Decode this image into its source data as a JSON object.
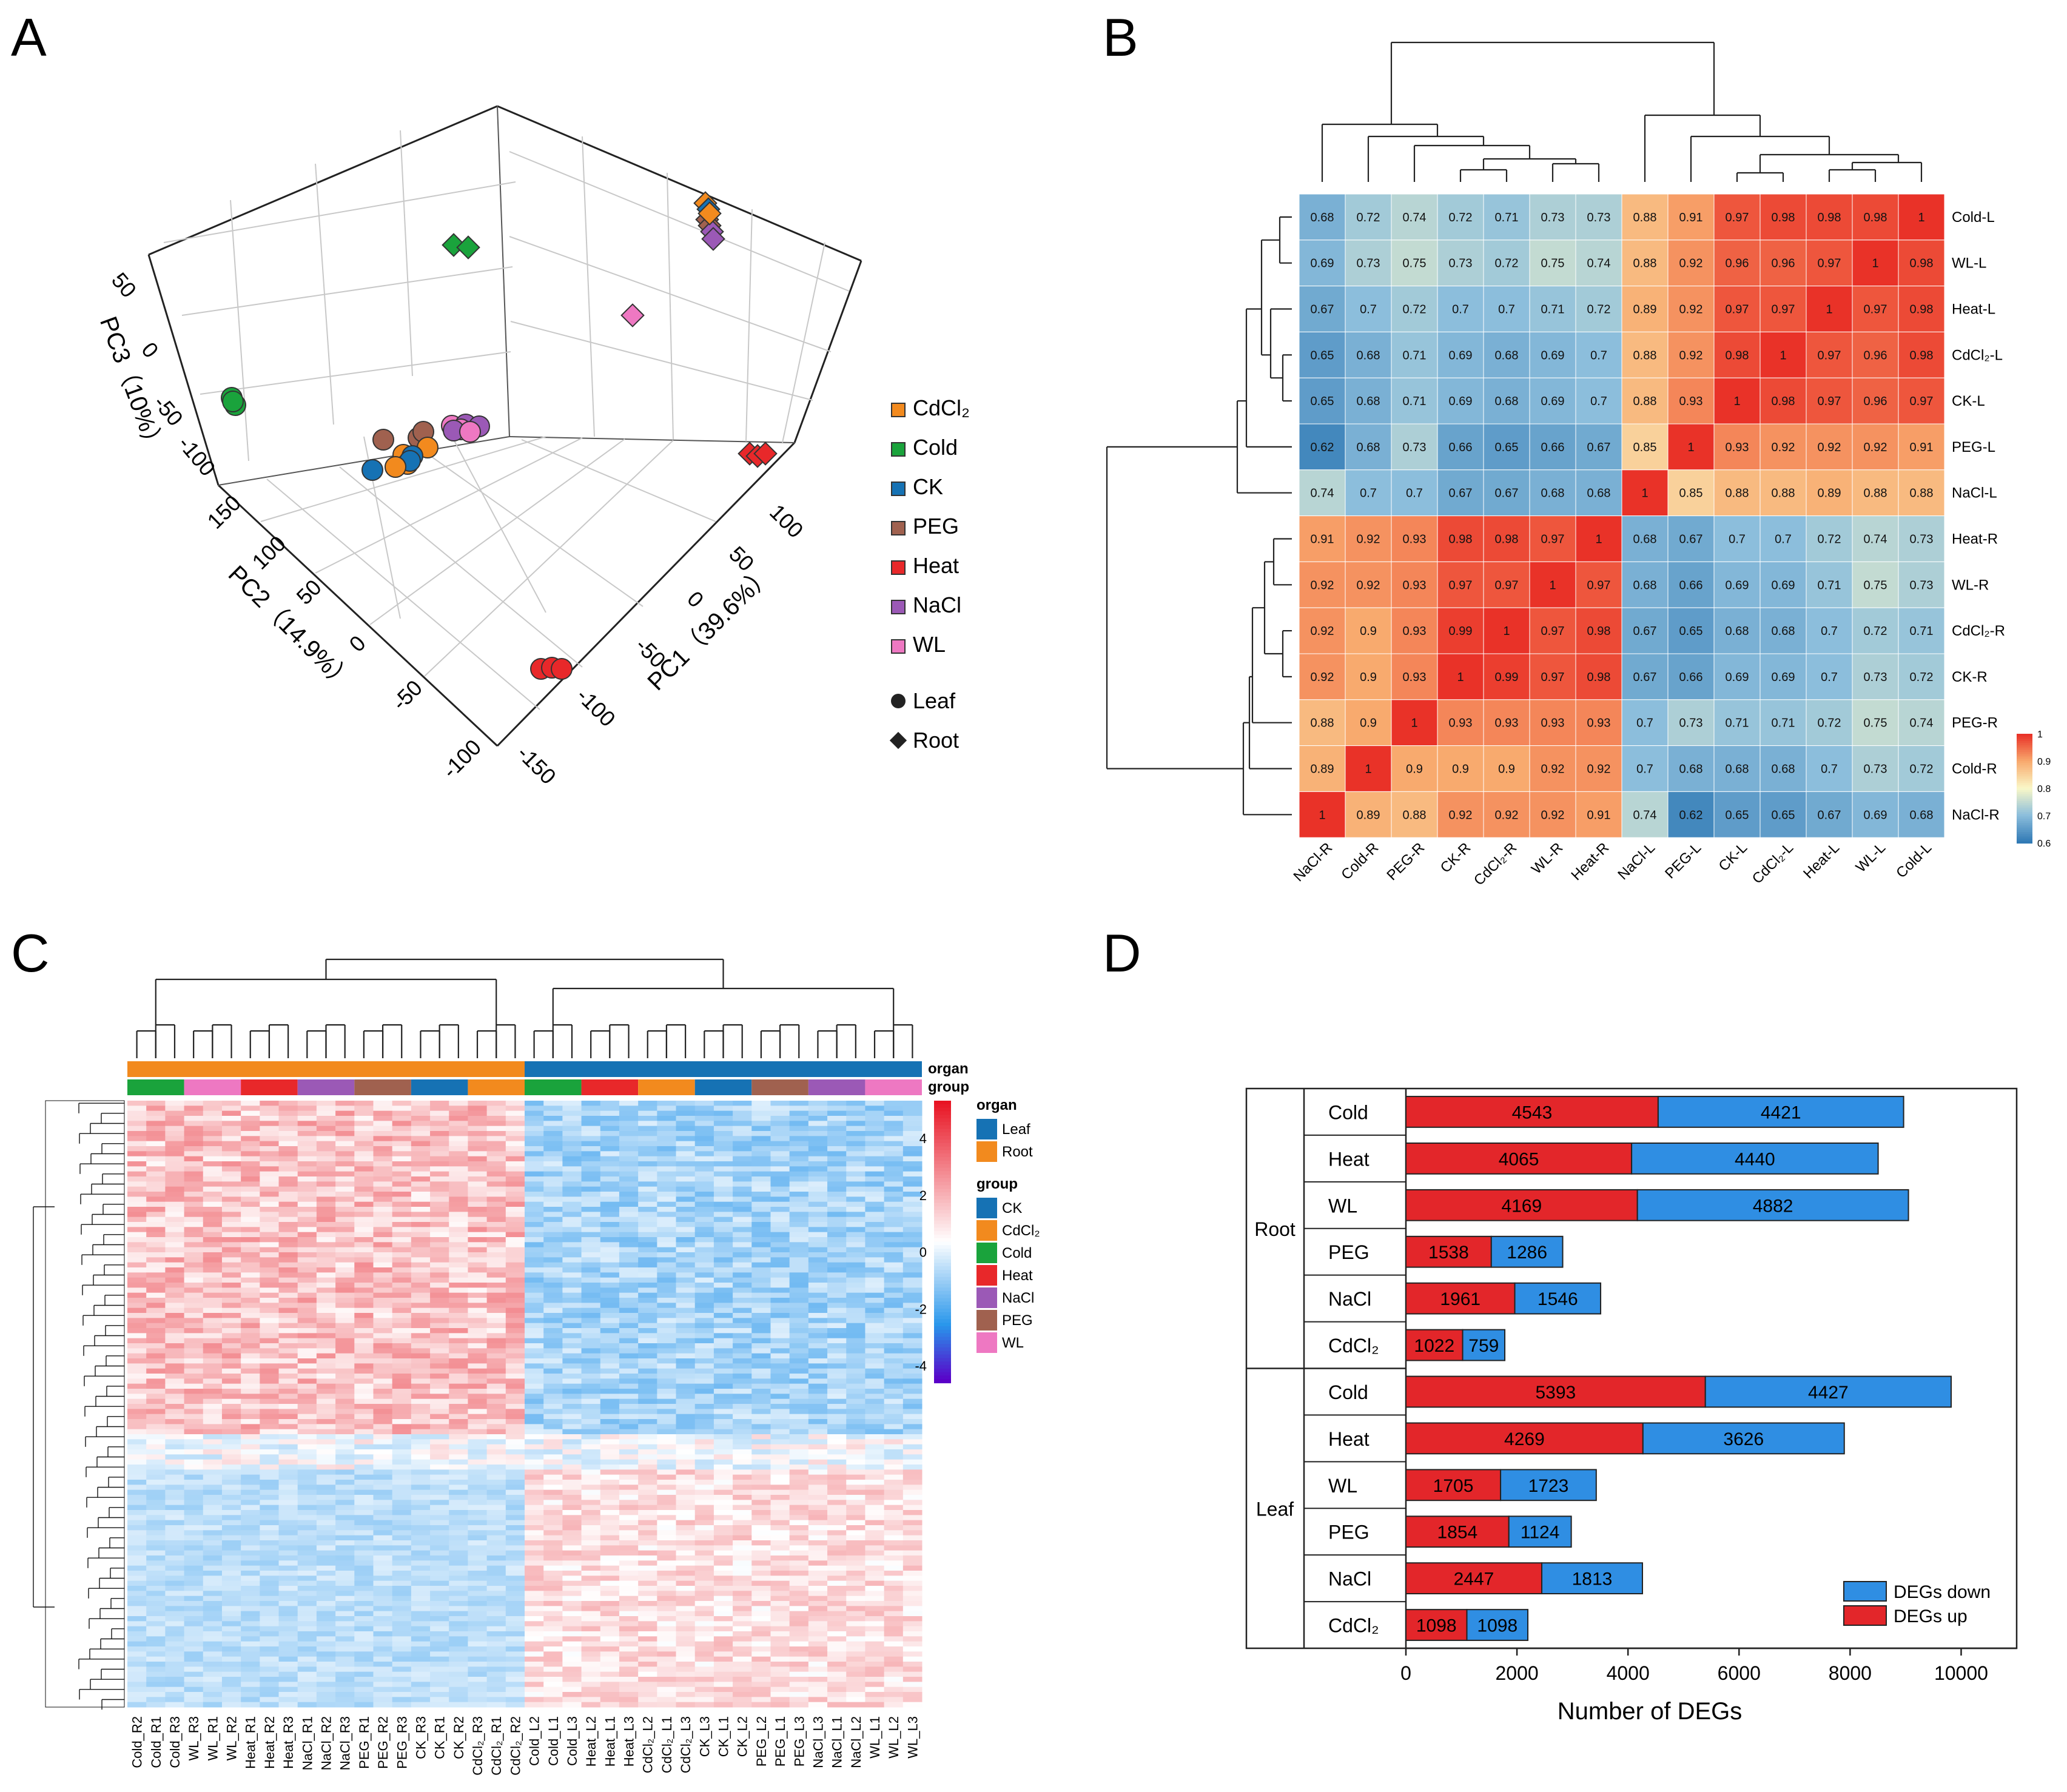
{
  "colors": {
    "CdCl2": "#f28a1e",
    "Cold": "#1aa33c",
    "CK": "#1672b4",
    "PEG": "#a0614f",
    "Heat": "#e8282a",
    "NaCl": "#9b59b6",
    "WL": "#ee78c2",
    "Leaf": "#1672b4",
    "Root": "#f28a1e",
    "bar_up": "#e3262a",
    "bar_down": "#2f8ee3"
  },
  "panel_letters": [
    "A",
    "B",
    "C",
    "D"
  ],
  "panelA": {
    "legend_groups": [
      {
        "key": "CdCl2",
        "label": "CdCl₂"
      },
      {
        "key": "Cold",
        "label": "Cold"
      },
      {
        "key": "CK",
        "label": "CK"
      },
      {
        "key": "PEG",
        "label": "PEG"
      },
      {
        "key": "Heat",
        "label": "Heat"
      },
      {
        "key": "NaCl",
        "label": "NaCl"
      },
      {
        "key": "WL",
        "label": "WL"
      }
    ],
    "legend_shapes": [
      {
        "shape": "circle",
        "label": "Leaf"
      },
      {
        "shape": "diamond",
        "label": "Root"
      }
    ],
    "axis_labels": {
      "pc1": "PC1（39.6%）",
      "pc2": "PC2（14.9%）",
      "pc3": "PC3（10%）"
    },
    "pc1_ticks": [
      "100",
      "50",
      "0",
      "-50",
      "-100",
      "-150"
    ],
    "pc2_ticks": [
      "150",
      "100",
      "50",
      "0",
      "-50",
      "-100"
    ],
    "pc3_ticks": [
      "50",
      "0",
      "-50",
      "-100"
    ]
  },
  "panelB": {
    "rows": [
      "Cold-L",
      "WL-L",
      "Heat-L",
      "CdCl₂-L",
      "CK-L",
      "PEG-L",
      "NaCl-L",
      "Heat-R",
      "WL-R",
      "CdCl₂-R",
      "CK-R",
      "PEG-R",
      "Cold-R",
      "NaCl-R"
    ],
    "cols": [
      "NaCl-R",
      "Cold-R",
      "PEG-R",
      "CK-R",
      "CdCl₂-R",
      "WL-R",
      "Heat-R",
      "NaCl-L",
      "PEG-L",
      "CK-L",
      "CdCl₂-L",
      "Heat-L",
      "WL-L",
      "Cold-L"
    ],
    "matrix": [
      [
        0.68,
        0.72,
        0.74,
        0.72,
        0.71,
        0.73,
        0.73,
        0.88,
        0.91,
        0.97,
        0.98,
        0.98,
        0.98,
        1
      ],
      [
        0.69,
        0.73,
        0.75,
        0.73,
        0.72,
        0.75,
        0.74,
        0.88,
        0.92,
        0.96,
        0.96,
        0.97,
        1,
        0.98
      ],
      [
        0.67,
        0.7,
        0.72,
        0.7,
        0.7,
        0.71,
        0.72,
        0.89,
        0.92,
        0.97,
        0.97,
        1,
        0.97,
        0.98
      ],
      [
        0.65,
        0.68,
        0.71,
        0.69,
        0.68,
        0.69,
        0.7,
        0.88,
        0.92,
        0.98,
        1,
        0.97,
        0.96,
        0.98
      ],
      [
        0.65,
        0.68,
        0.71,
        0.69,
        0.68,
        0.69,
        0.7,
        0.88,
        0.93,
        1,
        0.98,
        0.97,
        0.96,
        0.97
      ],
      [
        0.62,
        0.68,
        0.73,
        0.66,
        0.65,
        0.66,
        0.67,
        0.85,
        1,
        0.93,
        0.92,
        0.92,
        0.92,
        0.91
      ],
      [
        0.74,
        0.7,
        0.7,
        0.67,
        0.67,
        0.68,
        0.68,
        1,
        0.85,
        0.88,
        0.88,
        0.89,
        0.88,
        0.88
      ],
      [
        0.91,
        0.92,
        0.93,
        0.98,
        0.98,
        0.97,
        1,
        0.68,
        0.67,
        0.7,
        0.7,
        0.72,
        0.74,
        0.73
      ],
      [
        0.92,
        0.92,
        0.93,
        0.97,
        0.97,
        1,
        0.97,
        0.68,
        0.66,
        0.69,
        0.69,
        0.71,
        0.75,
        0.73
      ],
      [
        0.92,
        0.9,
        0.93,
        0.99,
        1,
        0.97,
        0.98,
        0.67,
        0.65,
        0.68,
        0.68,
        0.7,
        0.72,
        0.71
      ],
      [
        0.92,
        0.9,
        0.93,
        1,
        0.99,
        0.97,
        0.98,
        0.67,
        0.66,
        0.69,
        0.69,
        0.7,
        0.73,
        0.72
      ],
      [
        0.88,
        0.9,
        1,
        0.93,
        0.93,
        0.93,
        0.93,
        0.7,
        0.73,
        0.71,
        0.71,
        0.72,
        0.75,
        0.74
      ],
      [
        0.89,
        1,
        0.9,
        0.9,
        0.9,
        0.92,
        0.92,
        0.7,
        0.68,
        0.68,
        0.68,
        0.7,
        0.73,
        0.72
      ],
      [
        1,
        0.89,
        0.88,
        0.92,
        0.92,
        0.92,
        0.91,
        0.74,
        0.62,
        0.65,
        0.65,
        0.67,
        0.69,
        0.68
      ]
    ],
    "scale_ticks": [
      "1",
      "0.9",
      "0.8",
      "0.7",
      "0.6"
    ]
  },
  "panelC": {
    "samples": [
      "Cold_R2",
      "Cold_R1",
      "Cold_R3",
      "WL_R3",
      "WL_R1",
      "WL_R2",
      "Heat_R1",
      "Heat_R2",
      "Heat_R3",
      "NaCl_R1",
      "NaCl_R2",
      "NaCl_R3",
      "PEG_R1",
      "PEG_R2",
      "PEG_R3",
      "CK_R3",
      "CK_R1",
      "CK_R2",
      "CdCl₂_R3",
      "CdCl₂_R1",
      "CdCl₂_R2",
      "Cold_L2",
      "Cold_L1",
      "Cold_L3",
      "Heat_L2",
      "Heat_L1",
      "Heat_L3",
      "CdCl₂_L2",
      "CdCl₂_L1",
      "CdCl₂_L3",
      "CK_L3",
      "CK_L1",
      "CK_L2",
      "PEG_L2",
      "PEG_L1",
      "PEG_L3",
      "NaCl_L3",
      "NaCl_L1",
      "NaCl_L2",
      "WL_L1",
      "WL_L2",
      "WL_L3"
    ],
    "organ_bar": [
      "Root",
      "Leaf"
    ],
    "group_bar": [
      "Cold",
      "WL",
      "Heat",
      "NaCl",
      "PEG",
      "CK",
      "CdCl2",
      "Cold",
      "Heat",
      "CdCl2",
      "CK",
      "PEG",
      "NaCl",
      "WL"
    ],
    "track_labels": {
      "organ": "organ",
      "group": "group"
    },
    "legend_organ_title": "organ",
    "legend_organ": [
      {
        "key": "Leaf",
        "label": "Leaf"
      },
      {
        "key": "Root",
        "label": "Root"
      }
    ],
    "legend_group_title": "group",
    "legend_group": [
      {
        "key": "CK",
        "label": "CK"
      },
      {
        "key": "CdCl2",
        "label": "CdCl₂"
      },
      {
        "key": "Cold",
        "label": "Cold"
      },
      {
        "key": "Heat",
        "label": "Heat"
      },
      {
        "key": "NaCl",
        "label": "NaCl"
      },
      {
        "key": "PEG",
        "label": "PEG"
      },
      {
        "key": "WL",
        "label": "WL"
      }
    ],
    "scale_ticks": [
      "4",
      "2",
      "0",
      "-2",
      "-4"
    ]
  },
  "chart_data": {
    "type": "bar",
    "stacked": true,
    "orientation": "horizontal",
    "xlabel": "Number of DEGs",
    "xlim": [
      0,
      11000
    ],
    "xticks": [
      "0",
      "2000",
      "4000",
      "6000",
      "8000",
      "10000"
    ],
    "group_labels": [
      "Root",
      "Leaf"
    ],
    "categories": [
      {
        "group": "Root",
        "label": "Cold"
      },
      {
        "group": "Root",
        "label": "Heat"
      },
      {
        "group": "Root",
        "label": "WL"
      },
      {
        "group": "Root",
        "label": "PEG"
      },
      {
        "group": "Root",
        "label": "NaCl"
      },
      {
        "group": "Root",
        "label": "CdCl₂"
      },
      {
        "group": "Leaf",
        "label": "Cold"
      },
      {
        "group": "Leaf",
        "label": "Heat"
      },
      {
        "group": "Leaf",
        "label": "WL"
      },
      {
        "group": "Leaf",
        "label": "PEG"
      },
      {
        "group": "Leaf",
        "label": "NaCl"
      },
      {
        "group": "Leaf",
        "label": "CdCl₂"
      }
    ],
    "series": [
      {
        "name": "DEGs up",
        "values": [
          4543,
          4065,
          4169,
          1538,
          1961,
          1022,
          5393,
          4269,
          1705,
          1854,
          2447,
          1098
        ]
      },
      {
        "name": "DEGs down",
        "values": [
          4421,
          4440,
          4882,
          1286,
          1546,
          759,
          4427,
          3626,
          1723,
          1124,
          1813,
          1098
        ]
      }
    ],
    "legend": [
      "DEGs down",
      "DEGs up"
    ]
  }
}
